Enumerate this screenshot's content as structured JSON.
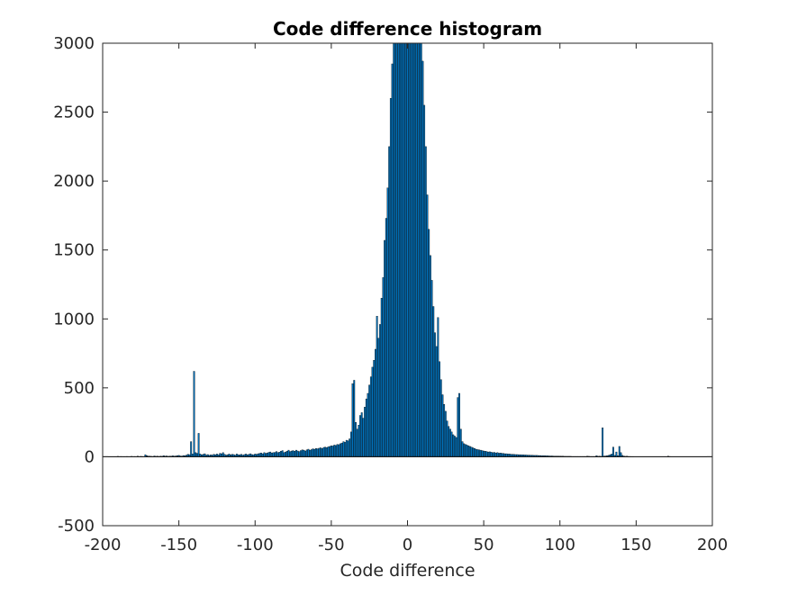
{
  "chart_data": {
    "type": "bar",
    "title": "Code difference histogram",
    "xlabel": "Code difference",
    "ylabel": "",
    "xlim": [
      -200,
      200
    ],
    "ylim": [
      -500,
      3000
    ],
    "xticks": [
      -200,
      -150,
      -100,
      -50,
      0,
      50,
      100,
      150,
      200
    ],
    "yticks": [
      -500,
      0,
      500,
      1000,
      1500,
      2000,
      2500,
      3000
    ],
    "xtick_labels": [
      "-200",
      "-150",
      "-100",
      "-50",
      "0",
      "50",
      "100",
      "150",
      "200"
    ],
    "ytick_labels": [
      "-500",
      "0",
      "500",
      "1000",
      "1500",
      "2000",
      "2500",
      "3000"
    ],
    "grid": false,
    "bar_color": "#0072BD",
    "bins": {
      "x": [
        -190,
        -189,
        -188,
        -187,
        -186,
        -185,
        -184,
        -183,
        -182,
        -181,
        -180,
        -179,
        -178,
        -177,
        -176,
        -175,
        -174,
        -173,
        -172,
        -171,
        -170,
        -169,
        -168,
        -167,
        -166,
        -165,
        -164,
        -163,
        -162,
        -161,
        -160,
        -159,
        -158,
        -157,
        -156,
        -155,
        -154,
        -153,
        -152,
        -151,
        -150,
        -149,
        -148,
        -147,
        -146,
        -145,
        -144,
        -143,
        -142,
        -141,
        -140,
        -139,
        -138,
        -137,
        -136,
        -135,
        -134,
        -133,
        -132,
        -131,
        -130,
        -129,
        -128,
        -127,
        -126,
        -125,
        -124,
        -123,
        -122,
        -121,
        -120,
        -119,
        -118,
        -117,
        -116,
        -115,
        -114,
        -113,
        -112,
        -111,
        -110,
        -109,
        -108,
        -107,
        -106,
        -105,
        -104,
        -103,
        -102,
        -101,
        -100,
        -99,
        -98,
        -97,
        -96,
        -95,
        -94,
        -93,
        -92,
        -91,
        -90,
        -89,
        -88,
        -87,
        -86,
        -85,
        -84,
        -83,
        -82,
        -81,
        -80,
        -79,
        -78,
        -77,
        -76,
        -75,
        -74,
        -73,
        -72,
        -71,
        -70,
        -69,
        -68,
        -67,
        -66,
        -65,
        -64,
        -63,
        -62,
        -61,
        -60,
        -59,
        -58,
        -57,
        -56,
        -55,
        -54,
        -53,
        -52,
        -51,
        -50,
        -49,
        -48,
        -47,
        -46,
        -45,
        -44,
        -43,
        -42,
        -41,
        -40,
        -39,
        -38,
        -37,
        -36,
        -35,
        -34,
        -33,
        -32,
        -31,
        -30,
        -29,
        -28,
        -27,
        -26,
        -25,
        -24,
        -23,
        -22,
        -21,
        -20,
        -19,
        -18,
        -17,
        -16,
        -15,
        -14,
        -13,
        -12,
        -11,
        -10,
        -9,
        -8,
        -7,
        -6,
        -5,
        -4,
        -3,
        -2,
        -1,
        0,
        1,
        2,
        3,
        4,
        5,
        6,
        7,
        8,
        9,
        10,
        11,
        12,
        13,
        14,
        15,
        16,
        17,
        18,
        19,
        20,
        21,
        22,
        23,
        24,
        25,
        26,
        27,
        28,
        29,
        30,
        31,
        32,
        33,
        34,
        35,
        36,
        37,
        38,
        39,
        40,
        41,
        42,
        43,
        44,
        45,
        46,
        47,
        48,
        49,
        50,
        51,
        52,
        53,
        54,
        55,
        56,
        57,
        58,
        59,
        60,
        61,
        62,
        63,
        64,
        65,
        66,
        67,
        68,
        69,
        70,
        71,
        72,
        73,
        74,
        75,
        76,
        77,
        78,
        79,
        80,
        81,
        82,
        83,
        84,
        85,
        86,
        87,
        88,
        89,
        90,
        91,
        92,
        93,
        94,
        95,
        96,
        97,
        98,
        99,
        100,
        101,
        102,
        103,
        104,
        105,
        106,
        107,
        108,
        109,
        110,
        111,
        112,
        113,
        114,
        115,
        116,
        117,
        118,
        119,
        120,
        121,
        122,
        123,
        124,
        125,
        126,
        127,
        128,
        129,
        130,
        131,
        132,
        133,
        134,
        135,
        136,
        137,
        138,
        139,
        140,
        141,
        142,
        143,
        144,
        145,
        146,
        147,
        148,
        149,
        150,
        151,
        152,
        153,
        154,
        155,
        156,
        157,
        158,
        159,
        160,
        161,
        162,
        163,
        164,
        165,
        166,
        167,
        168,
        169,
        170,
        171,
        172,
        173,
        174,
        175,
        176,
        177,
        178,
        179,
        180,
        181,
        182,
        183,
        184,
        185,
        186,
        187,
        188,
        189,
        190
      ],
      "y": [
        3,
        0,
        2,
        0,
        1,
        0,
        2,
        0,
        0,
        3,
        0,
        2,
        0,
        4,
        0,
        3,
        2,
        0,
        15,
        8,
        5,
        4,
        3,
        2,
        6,
        3,
        4,
        2,
        5,
        3,
        8,
        4,
        6,
        3,
        5,
        4,
        7,
        5,
        6,
        8,
        10,
        6,
        5,
        9,
        8,
        12,
        18,
        15,
        110,
        20,
        620,
        30,
        25,
        170,
        20,
        14,
        18,
        22,
        12,
        16,
        10,
        14,
        12,
        18,
        15,
        20,
        14,
        25,
        22,
        30,
        18,
        12,
        15,
        20,
        14,
        18,
        16,
        12,
        20,
        15,
        14,
        18,
        12,
        16,
        20,
        15,
        18,
        22,
        16,
        14,
        20,
        18,
        22,
        25,
        28,
        22,
        30,
        25,
        28,
        32,
        35,
        28,
        30,
        32,
        38,
        30,
        34,
        40,
        45,
        30,
        35,
        40,
        48,
        38,
        42,
        45,
        40,
        48,
        42,
        38,
        45,
        50,
        48,
        42,
        50,
        55,
        48,
        52,
        58,
        55,
        60,
        58,
        62,
        65,
        60,
        68,
        70,
        66,
        72,
        75,
        80,
        78,
        85,
        82,
        90,
        88,
        95,
        100,
        110,
        105,
        120,
        115,
        130,
        180,
        530,
        555,
        250,
        200,
        230,
        300,
        320,
        280,
        360,
        420,
        460,
        520,
        580,
        650,
        700,
        780,
        1020,
        860,
        960,
        1150,
        1300,
        1570,
        1730,
        1950,
        2250,
        2600,
        2850,
        3000,
        3000,
        3000,
        3000,
        3000,
        3000,
        3000,
        3000,
        3000,
        3000,
        3000,
        3000,
        3000,
        3000,
        3000,
        3000,
        3000,
        3000,
        3000,
        2870,
        2550,
        2250,
        1900,
        1650,
        1460,
        1280,
        1090,
        900,
        800,
        1010,
        690,
        560,
        450,
        380,
        330,
        260,
        220,
        200,
        180,
        160,
        150,
        140,
        430,
        460,
        200,
        110,
        95,
        90,
        85,
        80,
        75,
        70,
        65,
        60,
        55,
        52,
        50,
        48,
        45,
        42,
        40,
        38,
        35,
        36,
        33,
        30,
        32,
        28,
        30,
        26,
        27,
        25,
        24,
        22,
        22,
        20,
        20,
        18,
        18,
        17,
        16,
        16,
        15,
        15,
        14,
        14,
        13,
        13,
        12,
        12,
        11,
        11,
        10,
        10,
        10,
        9,
        9,
        8,
        8,
        8,
        7,
        7,
        6,
        6,
        6,
        5,
        5,
        5,
        5,
        4,
        4,
        4,
        3,
        3,
        3,
        3,
        3,
        2,
        2,
        2,
        2,
        2,
        2,
        2,
        2,
        2,
        2,
        4,
        3,
        2,
        2,
        2,
        2,
        8,
        3,
        4,
        3,
        210,
        5,
        6,
        8,
        10,
        15,
        20,
        70,
        10,
        35,
        8,
        75,
        30,
        10,
        5,
        3,
        4,
        2,
        2,
        1,
        1,
        0,
        0,
        0,
        0,
        0,
        0,
        0,
        0,
        0,
        0,
        0,
        0,
        0,
        0,
        0,
        0,
        0,
        0,
        0,
        0,
        0,
        0,
        4,
        2,
        0,
        0,
        0,
        0,
        0,
        0,
        0,
        0,
        0,
        0,
        0,
        0,
        0,
        0,
        0,
        0,
        0,
        0
      ]
    }
  }
}
